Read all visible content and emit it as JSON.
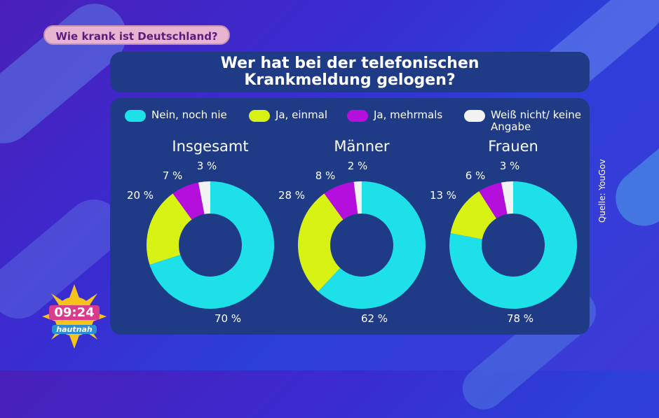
{
  "header": {
    "topic": "Wie krank ist Deutschland?",
    "title_line1": "Wer hat bei der telefonischen",
    "title_line2": "Krankmeldung gelogen?"
  },
  "source": "Quelle: YouGov",
  "clock": {
    "time": "09:24",
    "show": "hautnah"
  },
  "colors": {
    "nie": "#1ee0e8",
    "einmal": "#d8f214",
    "mehrmals": "#b40fdc",
    "keine": "#f2f2f2",
    "panel": "#1f3b86"
  },
  "chart_data": {
    "type": "pie",
    "legend": [
      "Nein, noch nie",
      "Ja, einmal",
      "Ja, mehrmals",
      "Weiß nicht/ keine Angabe"
    ],
    "legend_placement": "top",
    "charts": [
      {
        "title": "Insgesamt",
        "values": [
          70,
          20,
          7,
          3
        ],
        "labels": [
          "70 %",
          "20 %",
          "7 %",
          "3 %"
        ]
      },
      {
        "title": "Männer",
        "values": [
          62,
          28,
          8,
          2
        ],
        "labels": [
          "62 %",
          "28 %",
          "8 %",
          "2 %"
        ]
      },
      {
        "title": "Frauen",
        "values": [
          78,
          13,
          6,
          3
        ],
        "labels": [
          "78 %",
          "13 %",
          "6 %",
          "3 %"
        ]
      }
    ]
  }
}
